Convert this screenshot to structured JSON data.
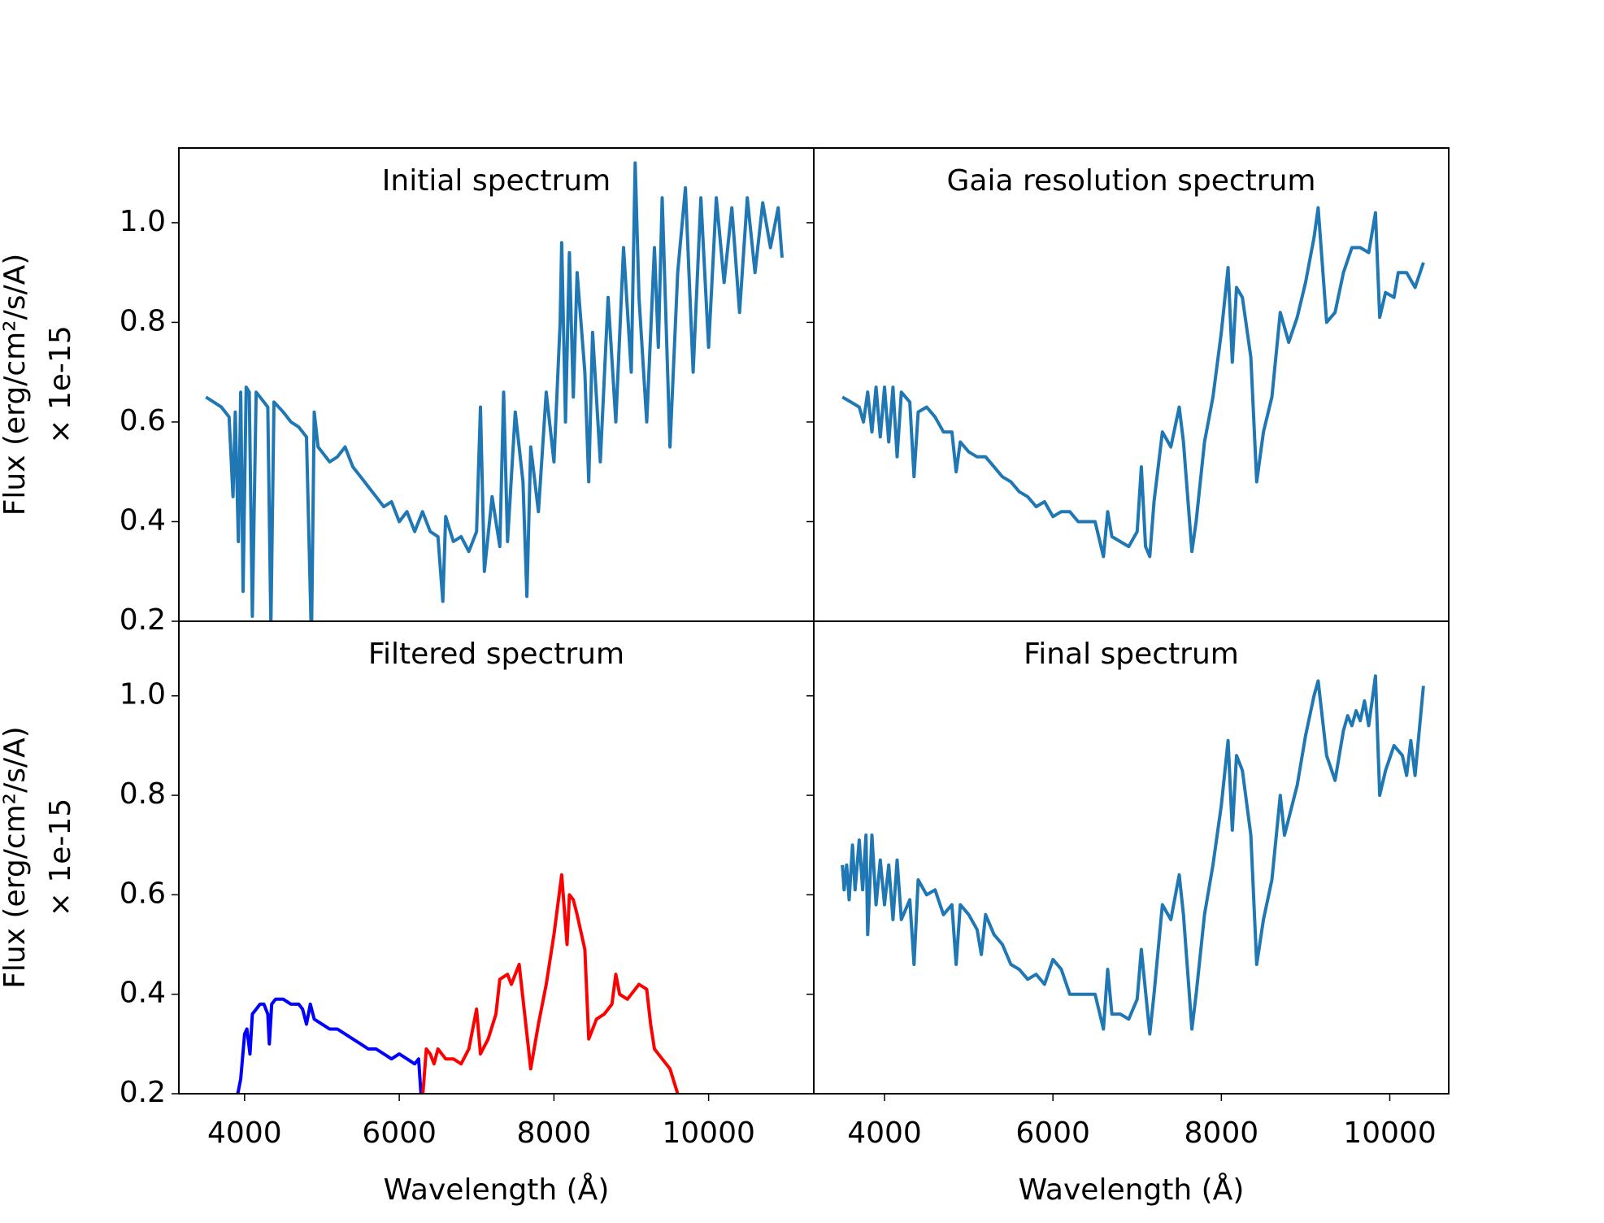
{
  "chart_data": [
    {
      "type": "line",
      "title": "Initial spectrum",
      "ylabel": [
        "Flux (erg/cm²/s/A)",
        "× 1e-15"
      ],
      "xlim": [
        3150,
        11360
      ],
      "ylim": [
        0.2,
        1.15
      ],
      "yticks": [
        0.2,
        0.4,
        0.6,
        0.8,
        {
          "value": 1,
          "label": "1.0"
        }
      ],
      "series": [
        {
          "color": "#1f77b4",
          "x": [
            3500,
            3600,
            3700,
            3800,
            3850,
            3880,
            3920,
            3950,
            3980,
            4020,
            4060,
            4100,
            4150,
            4200,
            4300,
            4340,
            4380,
            4500,
            4600,
            4700,
            4800,
            4865,
            4900,
            4950,
            5000,
            5100,
            5200,
            5300,
            5400,
            5500,
            5600,
            5700,
            5800,
            5900,
            6000,
            6100,
            6200,
            6300,
            6400,
            6500,
            6563,
            6600,
            6700,
            6800,
            6900,
            7000,
            7050,
            7100,
            7200,
            7300,
            7350,
            7400,
            7500,
            7600,
            7650,
            7700,
            7800,
            7900,
            8000,
            8080,
            8100,
            8150,
            8200,
            8250,
            8300,
            8400,
            8450,
            8500,
            8600,
            8700,
            8800,
            8900,
            9000,
            9050,
            9100,
            9200,
            9300,
            9350,
            9400,
            9500,
            9600,
            9700,
            9800,
            9900,
            10000,
            10100,
            10200,
            10300,
            10400,
            10500,
            10600,
            10700,
            10800,
            10900,
            10950
          ],
          "values": [
            0.65,
            0.64,
            0.63,
            0.61,
            0.45,
            0.62,
            0.36,
            0.66,
            0.26,
            0.67,
            0.66,
            0.21,
            0.66,
            0.65,
            0.63,
            0.19,
            0.64,
            0.62,
            0.6,
            0.59,
            0.57,
            0.16,
            0.62,
            0.55,
            0.54,
            0.52,
            0.53,
            0.55,
            0.51,
            0.49,
            0.47,
            0.45,
            0.43,
            0.44,
            0.4,
            0.42,
            0.38,
            0.42,
            0.38,
            0.37,
            0.24,
            0.41,
            0.36,
            0.37,
            0.34,
            0.38,
            0.63,
            0.3,
            0.45,
            0.35,
            0.66,
            0.36,
            0.62,
            0.48,
            0.25,
            0.55,
            0.42,
            0.66,
            0.52,
            0.8,
            0.96,
            0.6,
            0.94,
            0.65,
            0.9,
            0.7,
            0.48,
            0.78,
            0.52,
            0.85,
            0.6,
            0.95,
            0.7,
            1.12,
            0.85,
            0.6,
            0.95,
            0.75,
            1.05,
            0.55,
            0.9,
            1.07,
            0.7,
            1.05,
            0.75,
            1.05,
            0.88,
            1.03,
            0.82,
            1.05,
            0.9,
            1.04,
            0.95,
            1.03,
            0.93
          ]
        }
      ]
    },
    {
      "type": "line",
      "title": "Gaia resolution spectrum",
      "xlim": [
        3160,
        10700
      ],
      "ylim": [
        0.2,
        1.15
      ],
      "yticks": [
        0.2,
        0.4,
        0.6,
        0.8,
        {
          "value": 1,
          "label": "1.0"
        }
      ],
      "series": [
        {
          "color": "#1f77b4",
          "x": [
            3500,
            3600,
            3700,
            3750,
            3800,
            3850,
            3900,
            3950,
            4000,
            4050,
            4100,
            4150,
            4200,
            4300,
            4350,
            4400,
            4500,
            4600,
            4700,
            4800,
            4850,
            4900,
            5000,
            5100,
            5200,
            5300,
            5400,
            5500,
            5600,
            5700,
            5800,
            5900,
            6000,
            6100,
            6200,
            6300,
            6400,
            6500,
            6600,
            6650,
            6700,
            6800,
            6900,
            7000,
            7050,
            7100,
            7150,
            7200,
            7300,
            7400,
            7500,
            7550,
            7650,
            7700,
            7800,
            7900,
            8000,
            8080,
            8130,
            8180,
            8250,
            8350,
            8420,
            8500,
            8600,
            8700,
            8800,
            8900,
            9000,
            9100,
            9150,
            9250,
            9350,
            9450,
            9550,
            9650,
            9750,
            9830,
            9880,
            9950,
            10050,
            10100,
            10200,
            10300,
            10400
          ],
          "values": [
            0.65,
            0.64,
            0.63,
            0.6,
            0.66,
            0.58,
            0.67,
            0.57,
            0.67,
            0.56,
            0.67,
            0.53,
            0.66,
            0.64,
            0.49,
            0.62,
            0.63,
            0.61,
            0.58,
            0.58,
            0.5,
            0.56,
            0.54,
            0.53,
            0.53,
            0.51,
            0.49,
            0.48,
            0.46,
            0.45,
            0.43,
            0.44,
            0.41,
            0.42,
            0.42,
            0.4,
            0.4,
            0.4,
            0.33,
            0.42,
            0.37,
            0.36,
            0.35,
            0.38,
            0.51,
            0.35,
            0.33,
            0.44,
            0.58,
            0.55,
            0.63,
            0.56,
            0.34,
            0.4,
            0.56,
            0.65,
            0.78,
            0.91,
            0.72,
            0.87,
            0.85,
            0.73,
            0.48,
            0.58,
            0.65,
            0.82,
            0.76,
            0.81,
            0.88,
            0.97,
            1.03,
            0.8,
            0.82,
            0.9,
            0.95,
            0.95,
            0.94,
            1.02,
            0.81,
            0.86,
            0.85,
            0.9,
            0.9,
            0.87,
            0.92
          ]
        }
      ]
    },
    {
      "type": "line",
      "title": "Filtered spectrum",
      "ylabel": [
        "Flux (erg/cm²/s/A)",
        "× 1e-15"
      ],
      "xlabel": "Wavelength (Å)",
      "xlim": [
        3150,
        11360
      ],
      "ylim": [
        0.2,
        1.15
      ],
      "xticks": [
        4000,
        6000,
        8000,
        10000
      ],
      "yticks": [
        0.2,
        0.4,
        0.6,
        0.8,
        {
          "value": 1,
          "label": "1.0"
        }
      ],
      "series": [
        {
          "color": "#0000ff",
          "x": [
            3900,
            3950,
            4000,
            4030,
            4070,
            4100,
            4200,
            4250,
            4300,
            4320,
            4350,
            4400,
            4500,
            4600,
            4700,
            4750,
            4800,
            4850,
            4900,
            5000,
            5100,
            5200,
            5300,
            5400,
            5500,
            5600,
            5700,
            5800,
            5900,
            6000,
            6100,
            6200,
            6250,
            6280
          ],
          "values": [
            0.19,
            0.23,
            0.32,
            0.33,
            0.28,
            0.36,
            0.38,
            0.38,
            0.36,
            0.3,
            0.38,
            0.39,
            0.39,
            0.38,
            0.38,
            0.37,
            0.34,
            0.38,
            0.35,
            0.34,
            0.33,
            0.33,
            0.32,
            0.31,
            0.3,
            0.29,
            0.29,
            0.28,
            0.27,
            0.28,
            0.27,
            0.26,
            0.27,
            0.2
          ]
        },
        {
          "color": "#ff0000",
          "x": [
            6300,
            6350,
            6400,
            6450,
            6500,
            6600,
            6700,
            6800,
            6900,
            7000,
            7050,
            7150,
            7250,
            7300,
            7400,
            7450,
            7550,
            7650,
            7700,
            7800,
            7900,
            8000,
            8100,
            8170,
            8200,
            8250,
            8300,
            8400,
            8450,
            8550,
            8650,
            8750,
            8800,
            8850,
            8950,
            9100,
            9200,
            9250,
            9300,
            9400,
            9500,
            9600,
            9650
          ],
          "values": [
            0.19,
            0.29,
            0.28,
            0.26,
            0.29,
            0.27,
            0.27,
            0.26,
            0.29,
            0.37,
            0.28,
            0.31,
            0.36,
            0.43,
            0.44,
            0.42,
            0.46,
            0.32,
            0.25,
            0.34,
            0.42,
            0.52,
            0.64,
            0.5,
            0.6,
            0.59,
            0.56,
            0.49,
            0.31,
            0.35,
            0.36,
            0.38,
            0.44,
            0.4,
            0.39,
            0.42,
            0.41,
            0.34,
            0.29,
            0.27,
            0.25,
            0.2,
            0.17
          ]
        }
      ]
    },
    {
      "type": "line",
      "title": "Final spectrum",
      "xlabel": "Wavelength (Å)",
      "xlim": [
        3160,
        10700
      ],
      "ylim": [
        0.2,
        1.15
      ],
      "xticks": [
        4000,
        6000,
        8000,
        10000
      ],
      "yticks": [
        0.2,
        0.4,
        0.6,
        0.8,
        {
          "value": 1,
          "label": "1.0"
        }
      ],
      "series": [
        {
          "color": "#1f77b4",
          "x": [
            3500,
            3520,
            3550,
            3580,
            3620,
            3650,
            3700,
            3740,
            3780,
            3800,
            3850,
            3900,
            3950,
            4000,
            4050,
            4100,
            4150,
            4200,
            4300,
            4350,
            4400,
            4500,
            4600,
            4700,
            4800,
            4850,
            4900,
            5000,
            5100,
            5150,
            5200,
            5300,
            5400,
            5500,
            5600,
            5700,
            5800,
            5900,
            6000,
            6100,
            6200,
            6300,
            6400,
            6500,
            6600,
            6650,
            6700,
            6800,
            6900,
            7000,
            7050,
            7150,
            7200,
            7300,
            7400,
            7500,
            7550,
            7650,
            7700,
            7800,
            7900,
            8000,
            8080,
            8130,
            8180,
            8250,
            8350,
            8420,
            8500,
            8600,
            8700,
            8750,
            8900,
            9000,
            9100,
            9150,
            9250,
            9350,
            9450,
            9500,
            9550,
            9600,
            9650,
            9700,
            9750,
            9830,
            9880,
            9950,
            10050,
            10150,
            10200,
            10250,
            10300,
            10400
          ],
          "values": [
            0.66,
            0.61,
            0.66,
            0.59,
            0.7,
            0.61,
            0.71,
            0.61,
            0.72,
            0.52,
            0.72,
            0.58,
            0.67,
            0.58,
            0.66,
            0.55,
            0.67,
            0.55,
            0.59,
            0.46,
            0.63,
            0.6,
            0.61,
            0.56,
            0.58,
            0.46,
            0.58,
            0.56,
            0.53,
            0.48,
            0.56,
            0.52,
            0.5,
            0.46,
            0.45,
            0.43,
            0.44,
            0.42,
            0.47,
            0.45,
            0.4,
            0.4,
            0.4,
            0.4,
            0.33,
            0.45,
            0.36,
            0.36,
            0.35,
            0.39,
            0.49,
            0.32,
            0.4,
            0.58,
            0.55,
            0.64,
            0.56,
            0.33,
            0.4,
            0.56,
            0.66,
            0.78,
            0.91,
            0.73,
            0.88,
            0.85,
            0.72,
            0.46,
            0.55,
            0.63,
            0.8,
            0.72,
            0.82,
            0.92,
            1,
            1.03,
            0.88,
            0.83,
            0.93,
            0.96,
            0.94,
            0.97,
            0.95,
            0.99,
            0.94,
            1.04,
            0.8,
            0.85,
            0.9,
            0.88,
            0.84,
            0.91,
            0.84,
            1.02
          ]
        }
      ]
    }
  ]
}
